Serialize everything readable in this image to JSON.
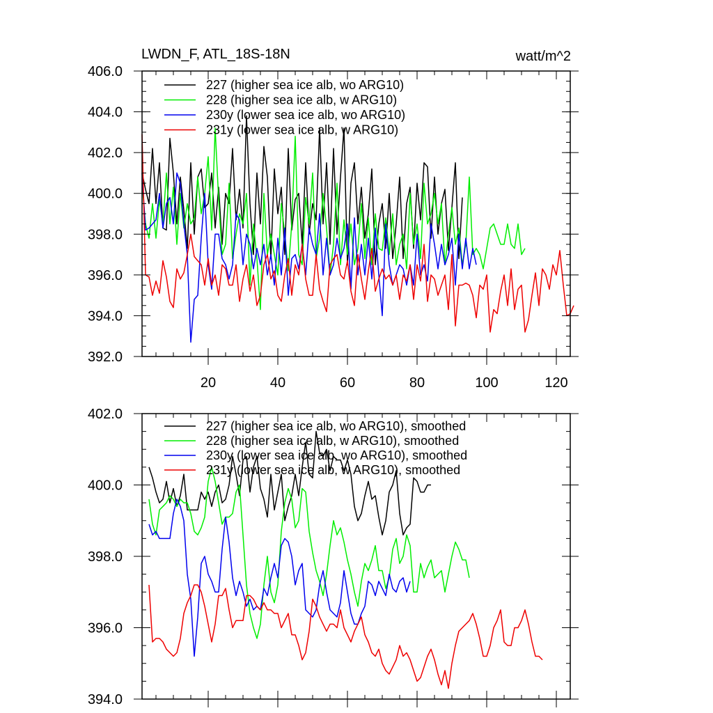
{
  "chart_data": [
    {
      "type": "line",
      "title": "LWDN_F, ATL_18S-18N",
      "units": "watt/m^2",
      "xlim": [
        1,
        124
      ],
      "ylim": [
        392,
        406
      ],
      "xticks": [
        20,
        40,
        60,
        80,
        100,
        120
      ],
      "xtick_labels": [
        "20",
        "40",
        "60",
        "80",
        "100",
        "120"
      ],
      "yticks": [
        392,
        394,
        396,
        398,
        400,
        402,
        404,
        406
      ],
      "ytick_labels": [
        "392.0",
        "394.0",
        "396.0",
        "398.0",
        "400.0",
        "402.0",
        "404.0",
        "406.0"
      ],
      "legend": "top-left",
      "series": [
        {
          "name": "227 (higher sea ice alb, wo ARG10)",
          "color": "#000000",
          "x_start": 1,
          "values": [
            401.0,
            400.2,
            399.5,
            402.2,
            399.5,
            401.5,
            398.3,
            398.2,
            402.7,
            401.0,
            398.5,
            400.8,
            399.2,
            397.3,
            401.5,
            398.0,
            400.8,
            401.2,
            399.3,
            399.5,
            401.0,
            398.3,
            400.3,
            397.5,
            400.0,
            399.5,
            402.2,
            398.7,
            400.2,
            398.3,
            403.8,
            399.5,
            397.0,
            401.0,
            398.5,
            402.3,
            400.8,
            396.8,
            401.2,
            399.0,
            400.3,
            397.0,
            402.2,
            398.2,
            399.7,
            400.0,
            397.5,
            401.5,
            398.0,
            399.5,
            398.7,
            403.2,
            398.5,
            401.5,
            397.5,
            402.2,
            398.0,
            400.8,
            403.2,
            396.5,
            400.5,
            401.5,
            398.5,
            400.3,
            397.8,
            399.0,
            401.2,
            396.5,
            398.5,
            399.5,
            397.3,
            400.0,
            396.8,
            398.5,
            400.8,
            396.8,
            399.5,
            400.3,
            397.3,
            400.5,
            398.7,
            401.5,
            401.3,
            397.8,
            400.8,
            398.0,
            399.5,
            400.2,
            397.2,
            399.3,
            401.5,
            396.8,
            399.8
          ]
        },
        {
          "name": "228 (higher sea ice alb, w ARG10)",
          "color": "#00ee00",
          "x_start": 1,
          "values": [
            400.5,
            398.5,
            397.8,
            399.5,
            397.8,
            399.7,
            398.5,
            401.0,
            398.5,
            400.3,
            397.5,
            400.0,
            398.3,
            399.5,
            398.5,
            398.8,
            400.8,
            399.0,
            400.0,
            401.8,
            398.2,
            403.2,
            399.7,
            397.0,
            397.5,
            400.5,
            396.8,
            398.0,
            399.0,
            398.5,
            400.0,
            395.5,
            398.5,
            396.8,
            394.3,
            400.0,
            397.0,
            398.0,
            397.0,
            396.0,
            399.5,
            398.0,
            396.2,
            398.5,
            402.8,
            397.0,
            396.5,
            399.8,
            398.5,
            401.0,
            396.8,
            397.8,
            400.0,
            398.3,
            396.0,
            397.5,
            400.5,
            396.5,
            398.7,
            397.0,
            398.5,
            396.5,
            397.3,
            399.5,
            396.8,
            398.8,
            396.5,
            399.0,
            397.3,
            397.2,
            398.8,
            397.0,
            399.0,
            396.5,
            397.5,
            398.0,
            396.3,
            400.0,
            397.5,
            398.5,
            396.8,
            400.5,
            398.5,
            399.0,
            400.0,
            398.5,
            399.5,
            396.5,
            398.0,
            399.3,
            397.5,
            398.3,
            396.5,
            397.5,
            400.8,
            397.0,
            397.3,
            397.0,
            396.3,
            397.3,
            398.3,
            398.5,
            398.0,
            397.5,
            397.5,
            398.5,
            397.5,
            397.3,
            398.5,
            397.0,
            397.3
          ]
        },
        {
          "name": "230y (lower sea ice alb, wo ARG10)",
          "color": "#0000ee",
          "x_start": 1,
          "values": [
            401.0,
            398.2,
            398.3,
            398.5,
            398.7,
            400.0,
            398.3,
            399.5,
            399.8,
            398.5,
            401.0,
            400.5,
            398.5,
            397.0,
            392.7,
            394.8,
            395.0,
            397.8,
            400.0,
            396.5,
            395.3,
            398.0,
            398.0,
            396.8,
            396.5,
            395.8,
            396.5,
            399.0,
            398.7,
            396.5,
            398.0,
            397.5,
            396.3,
            397.3,
            396.5,
            397.5,
            396.0,
            397.0,
            395.5,
            397.8,
            396.0,
            398.3,
            395.0,
            396.8,
            397.0,
            396.3,
            397.5,
            396.0,
            398.3,
            397.5,
            397.0,
            399.0,
            396.0,
            397.8,
            396.0,
            396.5,
            397.8,
            396.8,
            397.3,
            398.5,
            395.3,
            398.8,
            396.0,
            397.5,
            396.0,
            397.8,
            395.8,
            398.3,
            396.0,
            394.0,
            398.5,
            396.5,
            395.5,
            396.0,
            396.5,
            396.3,
            395.5,
            396.5,
            395.5,
            398.0,
            396.0,
            396.5,
            395.7,
            398.5,
            397.5,
            396.3,
            397.5,
            396.5,
            397.0,
            397.8,
            395.5,
            398.0,
            396.3,
            397.8,
            396.3,
            397.3,
            396.5
          ]
        },
        {
          "name": "231y (lower sea ice alb, w ARG10)",
          "color": "#ee0000",
          "x_start": 1,
          "values": [
            402.9,
            396.0,
            395.9,
            395.0,
            395.7,
            395.1,
            396.7,
            395.9,
            394.7,
            394.4,
            396.3,
            395.8,
            396.1,
            397.0,
            398.0,
            396.9,
            396.7,
            396.5,
            395.5,
            396.8,
            395.5,
            396.0,
            395.0,
            396.5,
            396.3,
            395.5,
            395.5,
            396.5,
            394.7,
            395.8,
            396.5,
            395.2,
            396.0,
            394.5,
            395.0,
            396.5,
            397.0,
            395.8,
            396.2,
            395.0,
            394.7,
            396.0,
            396.8,
            395.0,
            396.5,
            396.0,
            397.5,
            395.8,
            395.0,
            395.0,
            397.0,
            395.3,
            394.7,
            394.2,
            396.5,
            396.8,
            397.0,
            396.0,
            395.8,
            396.7,
            395.2,
            394.5,
            397.0,
            395.8,
            394.8,
            396.2,
            397.3,
            395.2,
            395.8,
            396.3,
            395.8,
            396.0,
            395.5,
            396.0,
            394.8,
            396.0,
            395.7,
            396.5,
            394.8,
            396.5,
            395.7,
            397.5,
            394.7,
            396.0,
            395.8,
            395.0,
            395.5,
            396.0,
            394.3,
            397.0,
            393.5,
            395.5,
            395.5,
            395.6,
            395.5,
            395.0,
            393.9,
            395.5,
            395.3,
            396.0,
            393.2,
            394.3,
            394.1,
            395.2,
            396.0,
            394.5,
            396.3,
            394.3,
            395.3,
            395.5,
            393.2,
            393.8,
            395.0,
            396.1,
            394.5,
            396.3,
            396.0,
            395.3,
            396.5,
            396.0,
            397.2,
            395.5,
            394.0,
            394.1,
            394.5
          ]
        }
      ]
    },
    {
      "type": "line",
      "title": "",
      "xlim": [
        1,
        124
      ],
      "ylim": [
        394,
        402
      ],
      "xticks": [
        20,
        40,
        60,
        80,
        100,
        120
      ],
      "yticks": [
        394,
        396,
        398,
        400,
        402
      ],
      "ytick_labels": [
        "394.0",
        "396.0",
        "398.0",
        "400.0",
        "402.0"
      ],
      "legend": "top-left",
      "series": [
        {
          "name": "227 (higher sea ice alb, wo ARG10), smoothed",
          "color": "#000000",
          "x_start": 3,
          "values": [
            400.5,
            400.2,
            399.8,
            399.5,
            399.6,
            400.1,
            399.5,
            399.9,
            399.4,
            399.7,
            400.3,
            399.3,
            399.3,
            399.3,
            399.3,
            399.8,
            399.6,
            399.8,
            399.4,
            399.8,
            400.0,
            399.5,
            399.6,
            400.0,
            400.8,
            400.3,
            399.7,
            400.7,
            400.8,
            399.8,
            400.5,
            400.8,
            399.9,
            399.6,
            399.1,
            400.3,
            399.3,
            399.8,
            400.3,
            399.0,
            399.4,
            399.7,
            400.3,
            399.7,
            400.5,
            401.2,
            400.3,
            400.2,
            401.5,
            400.9,
            400.8,
            401.0,
            400.4,
            400.8,
            400.7,
            400.7,
            400.4,
            400.7,
            400.3,
            399.4,
            399.0,
            399.2,
            399.7,
            400.1,
            399.6,
            399.7,
            399.1,
            398.6,
            399.0,
            399.8,
            400.0,
            400.4,
            399.2,
            398.6,
            398.8,
            398.9,
            400.2,
            400.1,
            399.8,
            399.8,
            400.0,
            400.0
          ]
        },
        {
          "name": "228 (higher sea ice alb, w ARG10), smoothed",
          "color": "#00ee00",
          "x_start": 3,
          "values": [
            399.6,
            398.9,
            398.6,
            399.3,
            399.4,
            399.5,
            399.7,
            399.6,
            399.4,
            399.6,
            399.5,
            399.5,
            399.2,
            398.7,
            398.6,
            398.8,
            399.1,
            400.1,
            400.5,
            400.1,
            399.5,
            398.9,
            399.1,
            399.1,
            399.2,
            399.8,
            400.0,
            398.6,
            397.2,
            396.4,
            396.0,
            395.7,
            396.1,
            397.2,
            398.0,
            397.0,
            396.7,
            397.2,
            398.7,
            399.5,
            399.9,
            399.6,
            398.8,
            399.0,
            399.9,
            399.8,
            398.7,
            398.1,
            397.6,
            397.3,
            396.9,
            397.5,
            398.3,
            399.0,
            398.6,
            398.8,
            398.4,
            397.9,
            397.5,
            397.0,
            396.6,
            397.3,
            397.8,
            397.6,
            397.9,
            398.3,
            397.6,
            397.6,
            397.1,
            397.4,
            398.2,
            398.5,
            397.8,
            398.0,
            398.6,
            398.3,
            397.0,
            397.0,
            397.8,
            397.4,
            397.7,
            397.9,
            397.4,
            397.5,
            397.6,
            397.0,
            397.5,
            398.0,
            398.4,
            398.2,
            397.9,
            397.9,
            397.4
          ]
        },
        {
          "name": "230y (lower sea ice alb, wo ARG10), smoothed",
          "color": "#0000ee",
          "x_start": 3,
          "values": [
            398.9,
            398.6,
            398.7,
            398.5,
            398.5,
            398.5,
            398.5,
            399.2,
            399.6,
            399.4,
            399.0,
            397.5,
            396.8,
            395.2,
            396.3,
            397.8,
            398.0,
            397.5,
            397.3,
            397.0,
            397.0,
            398.2,
            399.1,
            398.4,
            397.4,
            396.9,
            397.3,
            397.0,
            396.6,
            396.8,
            396.5,
            396.6,
            396.5,
            397.1,
            396.9,
            397.4,
            397.8,
            397.4,
            398.3,
            398.5,
            398.4,
            398.0,
            397.2,
            397.6,
            397.8,
            396.5,
            396.4,
            396.3,
            396.5,
            397.2,
            397.6,
            397.0,
            396.5,
            396.4,
            396.3,
            396.7,
            397.6,
            397.0,
            396.4,
            396.1,
            396.1,
            396.4,
            396.6,
            397.3,
            397.2,
            396.9,
            397.3,
            397.1,
            396.9,
            397.5,
            397.1,
            397.0,
            397.3,
            397.4,
            397.0,
            397.3
          ]
        },
        {
          "name": "231y (lower sea ice alb, w ARG10), smoothed",
          "color": "#ee0000",
          "x_start": 3,
          "values": [
            397.2,
            395.6,
            395.7,
            395.7,
            395.6,
            395.4,
            395.3,
            395.2,
            395.3,
            395.7,
            396.4,
            396.7,
            396.9,
            397.2,
            397.2,
            397.0,
            396.6,
            396.1,
            395.6,
            396.1,
            396.9,
            396.9,
            397.1,
            396.5,
            396.0,
            396.2,
            396.2,
            396.2,
            396.9,
            396.9,
            396.8,
            396.6,
            396.5,
            396.7,
            396.5,
            396.5,
            396.4,
            396.4,
            396.0,
            396.2,
            396.4,
            395.8,
            395.8,
            395.5,
            395.1,
            395.3,
            395.9,
            396.8,
            396.6,
            396.3,
            396.1,
            395.9,
            396.1,
            396.1,
            396.0,
            396.5,
            396.0,
            395.8,
            395.6,
            395.9,
            396.1,
            396.3,
            395.8,
            395.6,
            395.3,
            395.2,
            395.4,
            395.0,
            394.8,
            394.7,
            394.9,
            395.1,
            395.5,
            395.2,
            395.3,
            395.1,
            394.8,
            394.5,
            394.6,
            394.9,
            395.2,
            395.4,
            395.1,
            394.7,
            394.4,
            394.8,
            394.3,
            395.0,
            395.5,
            395.9,
            396.0,
            396.1,
            396.2,
            396.4,
            396.1,
            395.7,
            395.2,
            395.2,
            395.5,
            396.0,
            396.2,
            396.5,
            395.6,
            395.5,
            395.5,
            396.0,
            396.0,
            396.2,
            396.5,
            396.1,
            395.6,
            395.2,
            395.2,
            395.1
          ]
        }
      ]
    }
  ]
}
